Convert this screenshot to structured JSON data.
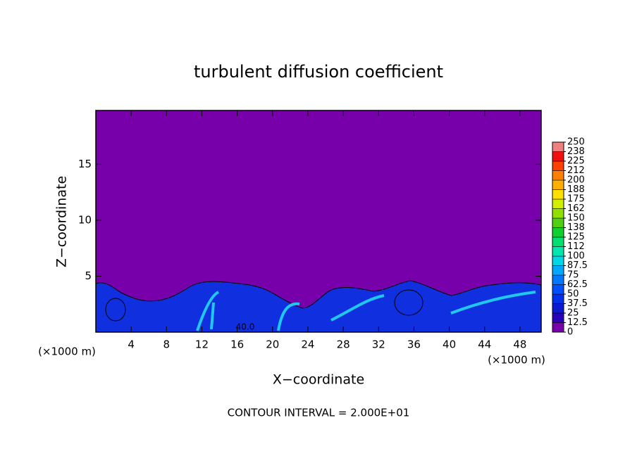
{
  "chart_data": {
    "type": "contour",
    "title": "turbulent diffusion coefficient",
    "x_label": "X−coordinate",
    "y_label": "Z−coordinate",
    "x_unit_labels": [
      "(×1000 m)",
      "(×1000 m)"
    ],
    "xlim": [
      0,
      50.4
    ],
    "ylim": [
      0,
      19.8
    ],
    "xticks": [
      4,
      8,
      12,
      16,
      20,
      24,
      28,
      32,
      36,
      40,
      44,
      48
    ],
    "yticks": [
      5,
      10,
      15
    ],
    "annotation": "40.0",
    "footer": "CONTOUR INTERVAL = 2.000E+01",
    "colorbar": {
      "ticks": [
        0,
        12.5,
        25,
        37.5,
        50,
        62.5,
        75,
        87.5,
        100,
        {
          "value": 112.5,
          "label": "112"
        },
        125,
        {
          "value": 137.5,
          "label": "138"
        },
        150,
        {
          "value": 162.5,
          "label": "162"
        },
        175,
        {
          "value": 187.5,
          "label": "188"
        },
        200,
        {
          "value": 212.5,
          "label": "212"
        },
        225,
        {
          "value": 237.5,
          "label": "238"
        },
        250
      ],
      "colors": [
        "#7700aa",
        "#2a00b8",
        "#0a1ad0",
        "#0030e8",
        "#0050ff",
        "#0078ff",
        "#00a8ff",
        "#00d8e8",
        "#00e8b0",
        "#00e070",
        "#10d030",
        "#50d010",
        "#90e000",
        "#d0f000",
        "#ffe000",
        "#ffb000",
        "#ff8000",
        "#ff4000",
        "#f01010",
        "#f08080"
      ]
    }
  }
}
